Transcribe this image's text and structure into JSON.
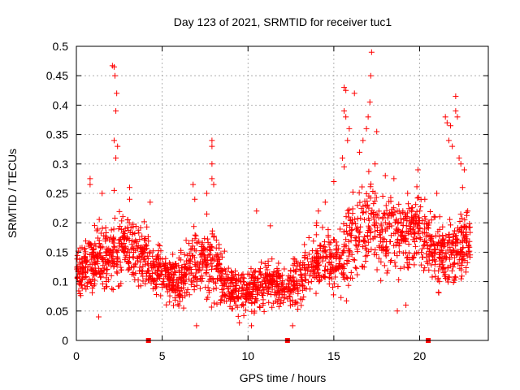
{
  "chart_data": {
    "type": "scatter",
    "title": "Day 123 of 2021, SRMTID for receiver tuc1",
    "xlabel": "GPS time / hours",
    "ylabel": "SRMTID / TECUs",
    "xlim": [
      0,
      24
    ],
    "ylim": [
      0,
      0.5
    ],
    "xticks": [
      0,
      5,
      10,
      15,
      20
    ],
    "xtick_labels": [
      "0",
      "5",
      "10",
      "15",
      "20"
    ],
    "yticks": [
      0,
      0.05,
      0.1,
      0.15,
      0.2,
      0.25,
      0.3,
      0.35,
      0.4,
      0.45,
      0.5
    ],
    "ytick_labels": [
      "0",
      "0.05",
      "0.1",
      "0.15",
      "0.2",
      "0.25",
      "0.3",
      "0.35",
      "0.4",
      "0.45",
      "0.5"
    ],
    "grid": true,
    "marker": "plus",
    "color": "#ff0000",
    "baseline_markers_x": [
      4.2,
      12.3,
      20.5
    ],
    "envelope": {
      "x": [
        0,
        1,
        2,
        3,
        4,
        5,
        6,
        7,
        8,
        9,
        10,
        11,
        12,
        13,
        14,
        15,
        16,
        17,
        18,
        19,
        20,
        21,
        22,
        23
      ],
      "center": [
        0.12,
        0.13,
        0.15,
        0.16,
        0.14,
        0.11,
        0.1,
        0.14,
        0.13,
        0.09,
        0.08,
        0.1,
        0.09,
        0.1,
        0.14,
        0.13,
        0.16,
        0.19,
        0.18,
        0.18,
        0.19,
        0.15,
        0.15,
        0.17
      ],
      "spread": [
        0.06,
        0.07,
        0.09,
        0.08,
        0.07,
        0.06,
        0.06,
        0.08,
        0.08,
        0.05,
        0.05,
        0.06,
        0.05,
        0.06,
        0.07,
        0.08,
        0.1,
        0.11,
        0.1,
        0.09,
        0.09,
        0.08,
        0.09,
        0.08
      ]
    },
    "outliers": [
      {
        "x": 2.1,
        "y": 0.467
      },
      {
        "x": 2.2,
        "y": 0.465
      },
      {
        "x": 2.25,
        "y": 0.45
      },
      {
        "x": 2.35,
        "y": 0.42
      },
      {
        "x": 2.3,
        "y": 0.39
      },
      {
        "x": 2.2,
        "y": 0.34
      },
      {
        "x": 2.4,
        "y": 0.33
      },
      {
        "x": 2.3,
        "y": 0.31
      },
      {
        "x": 2.2,
        "y": 0.255
      },
      {
        "x": 0.8,
        "y": 0.275
      },
      {
        "x": 0.8,
        "y": 0.265
      },
      {
        "x": 1.5,
        "y": 0.25
      },
      {
        "x": 3.1,
        "y": 0.26
      },
      {
        "x": 3.1,
        "y": 0.24
      },
      {
        "x": 4.3,
        "y": 0.235
      },
      {
        "x": 6.8,
        "y": 0.265
      },
      {
        "x": 6.9,
        "y": 0.24
      },
      {
        "x": 7.6,
        "y": 0.25
      },
      {
        "x": 7.9,
        "y": 0.34
      },
      {
        "x": 7.9,
        "y": 0.33
      },
      {
        "x": 7.9,
        "y": 0.3
      },
      {
        "x": 7.9,
        "y": 0.275
      },
      {
        "x": 8.0,
        "y": 0.265
      },
      {
        "x": 7.6,
        "y": 0.215
      },
      {
        "x": 10.5,
        "y": 0.22
      },
      {
        "x": 11.3,
        "y": 0.195
      },
      {
        "x": 14.0,
        "y": 0.2
      },
      {
        "x": 14.5,
        "y": 0.235
      },
      {
        "x": 14.1,
        "y": 0.22
      },
      {
        "x": 15.0,
        "y": 0.27
      },
      {
        "x": 15.6,
        "y": 0.43
      },
      {
        "x": 15.7,
        "y": 0.425
      },
      {
        "x": 15.6,
        "y": 0.39
      },
      {
        "x": 15.7,
        "y": 0.38
      },
      {
        "x": 16.2,
        "y": 0.42
      },
      {
        "x": 15.9,
        "y": 0.36
      },
      {
        "x": 15.8,
        "y": 0.34
      },
      {
        "x": 15.5,
        "y": 0.31
      },
      {
        "x": 15.6,
        "y": 0.295
      },
      {
        "x": 16.5,
        "y": 0.32
      },
      {
        "x": 16.7,
        "y": 0.34
      },
      {
        "x": 16.9,
        "y": 0.36
      },
      {
        "x": 17.0,
        "y": 0.38
      },
      {
        "x": 17.1,
        "y": 0.405
      },
      {
        "x": 17.15,
        "y": 0.45
      },
      {
        "x": 17.2,
        "y": 0.49
      },
      {
        "x": 17.5,
        "y": 0.355
      },
      {
        "x": 17.4,
        "y": 0.3
      },
      {
        "x": 18.0,
        "y": 0.28
      },
      {
        "x": 18.5,
        "y": 0.275
      },
      {
        "x": 19.3,
        "y": 0.25
      },
      {
        "x": 19.9,
        "y": 0.29
      },
      {
        "x": 20.3,
        "y": 0.24
      },
      {
        "x": 21.0,
        "y": 0.25
      },
      {
        "x": 21.5,
        "y": 0.38
      },
      {
        "x": 21.6,
        "y": 0.37
      },
      {
        "x": 21.8,
        "y": 0.365
      },
      {
        "x": 21.7,
        "y": 0.34
      },
      {
        "x": 21.9,
        "y": 0.33
      },
      {
        "x": 22.1,
        "y": 0.415
      },
      {
        "x": 22.1,
        "y": 0.39
      },
      {
        "x": 22.2,
        "y": 0.38
      },
      {
        "x": 22.3,
        "y": 0.31
      },
      {
        "x": 22.4,
        "y": 0.3
      },
      {
        "x": 22.6,
        "y": 0.29
      },
      {
        "x": 22.5,
        "y": 0.26
      },
      {
        "x": 22.8,
        "y": 0.22
      },
      {
        "x": 18.7,
        "y": 0.05
      },
      {
        "x": 19.2,
        "y": 0.06
      },
      {
        "x": 7.0,
        "y": 0.025
      },
      {
        "x": 9.5,
        "y": 0.03
      },
      {
        "x": 12.6,
        "y": 0.025
      },
      {
        "x": 10.2,
        "y": 0.025
      },
      {
        "x": 1.3,
        "y": 0.04
      }
    ]
  }
}
